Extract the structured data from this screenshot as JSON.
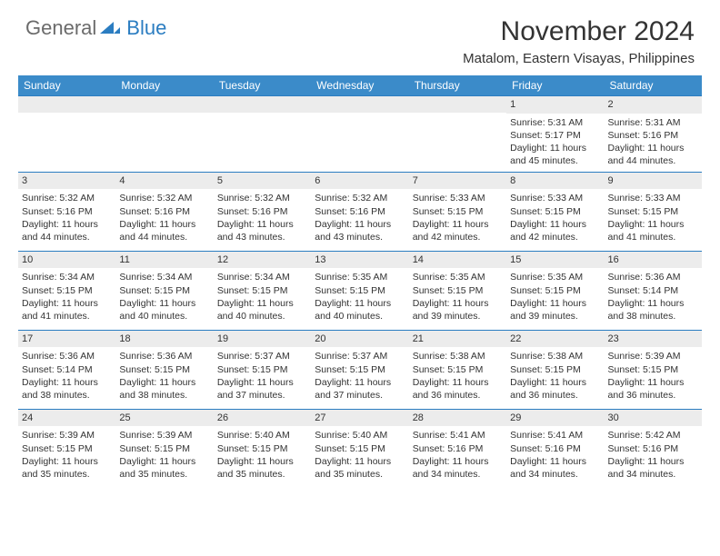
{
  "logo": {
    "general": "General",
    "blue": "Blue"
  },
  "title": "November 2024",
  "location": "Matalom, Eastern Visayas, Philippines",
  "colors": {
    "header_bg": "#3b8bc9",
    "row_border": "#2b7dc1",
    "daynum_bg": "#ececec",
    "text": "#333333",
    "logo_general": "#6b6b6b",
    "logo_blue": "#2b7dc1"
  },
  "day_headers": [
    "Sunday",
    "Monday",
    "Tuesday",
    "Wednesday",
    "Thursday",
    "Friday",
    "Saturday"
  ],
  "weeks": [
    [
      null,
      null,
      null,
      null,
      null,
      {
        "n": "1",
        "sunrise": "5:31 AM",
        "sunset": "5:17 PM",
        "daylight": "11 hours and 45 minutes."
      },
      {
        "n": "2",
        "sunrise": "5:31 AM",
        "sunset": "5:16 PM",
        "daylight": "11 hours and 44 minutes."
      }
    ],
    [
      {
        "n": "3",
        "sunrise": "5:32 AM",
        "sunset": "5:16 PM",
        "daylight": "11 hours and 44 minutes."
      },
      {
        "n": "4",
        "sunrise": "5:32 AM",
        "sunset": "5:16 PM",
        "daylight": "11 hours and 44 minutes."
      },
      {
        "n": "5",
        "sunrise": "5:32 AM",
        "sunset": "5:16 PM",
        "daylight": "11 hours and 43 minutes."
      },
      {
        "n": "6",
        "sunrise": "5:32 AM",
        "sunset": "5:16 PM",
        "daylight": "11 hours and 43 minutes."
      },
      {
        "n": "7",
        "sunrise": "5:33 AM",
        "sunset": "5:15 PM",
        "daylight": "11 hours and 42 minutes."
      },
      {
        "n": "8",
        "sunrise": "5:33 AM",
        "sunset": "5:15 PM",
        "daylight": "11 hours and 42 minutes."
      },
      {
        "n": "9",
        "sunrise": "5:33 AM",
        "sunset": "5:15 PM",
        "daylight": "11 hours and 41 minutes."
      }
    ],
    [
      {
        "n": "10",
        "sunrise": "5:34 AM",
        "sunset": "5:15 PM",
        "daylight": "11 hours and 41 minutes."
      },
      {
        "n": "11",
        "sunrise": "5:34 AM",
        "sunset": "5:15 PM",
        "daylight": "11 hours and 40 minutes."
      },
      {
        "n": "12",
        "sunrise": "5:34 AM",
        "sunset": "5:15 PM",
        "daylight": "11 hours and 40 minutes."
      },
      {
        "n": "13",
        "sunrise": "5:35 AM",
        "sunset": "5:15 PM",
        "daylight": "11 hours and 40 minutes."
      },
      {
        "n": "14",
        "sunrise": "5:35 AM",
        "sunset": "5:15 PM",
        "daylight": "11 hours and 39 minutes."
      },
      {
        "n": "15",
        "sunrise": "5:35 AM",
        "sunset": "5:15 PM",
        "daylight": "11 hours and 39 minutes."
      },
      {
        "n": "16",
        "sunrise": "5:36 AM",
        "sunset": "5:14 PM",
        "daylight": "11 hours and 38 minutes."
      }
    ],
    [
      {
        "n": "17",
        "sunrise": "5:36 AM",
        "sunset": "5:14 PM",
        "daylight": "11 hours and 38 minutes."
      },
      {
        "n": "18",
        "sunrise": "5:36 AM",
        "sunset": "5:15 PM",
        "daylight": "11 hours and 38 minutes."
      },
      {
        "n": "19",
        "sunrise": "5:37 AM",
        "sunset": "5:15 PM",
        "daylight": "11 hours and 37 minutes."
      },
      {
        "n": "20",
        "sunrise": "5:37 AM",
        "sunset": "5:15 PM",
        "daylight": "11 hours and 37 minutes."
      },
      {
        "n": "21",
        "sunrise": "5:38 AM",
        "sunset": "5:15 PM",
        "daylight": "11 hours and 36 minutes."
      },
      {
        "n": "22",
        "sunrise": "5:38 AM",
        "sunset": "5:15 PM",
        "daylight": "11 hours and 36 minutes."
      },
      {
        "n": "23",
        "sunrise": "5:39 AM",
        "sunset": "5:15 PM",
        "daylight": "11 hours and 36 minutes."
      }
    ],
    [
      {
        "n": "24",
        "sunrise": "5:39 AM",
        "sunset": "5:15 PM",
        "daylight": "11 hours and 35 minutes."
      },
      {
        "n": "25",
        "sunrise": "5:39 AM",
        "sunset": "5:15 PM",
        "daylight": "11 hours and 35 minutes."
      },
      {
        "n": "26",
        "sunrise": "5:40 AM",
        "sunset": "5:15 PM",
        "daylight": "11 hours and 35 minutes."
      },
      {
        "n": "27",
        "sunrise": "5:40 AM",
        "sunset": "5:15 PM",
        "daylight": "11 hours and 35 minutes."
      },
      {
        "n": "28",
        "sunrise": "5:41 AM",
        "sunset": "5:16 PM",
        "daylight": "11 hours and 34 minutes."
      },
      {
        "n": "29",
        "sunrise": "5:41 AM",
        "sunset": "5:16 PM",
        "daylight": "11 hours and 34 minutes."
      },
      {
        "n": "30",
        "sunrise": "5:42 AM",
        "sunset": "5:16 PM",
        "daylight": "11 hours and 34 minutes."
      }
    ]
  ],
  "labels": {
    "sunrise": "Sunrise: ",
    "sunset": "Sunset: ",
    "daylight": "Daylight: "
  }
}
